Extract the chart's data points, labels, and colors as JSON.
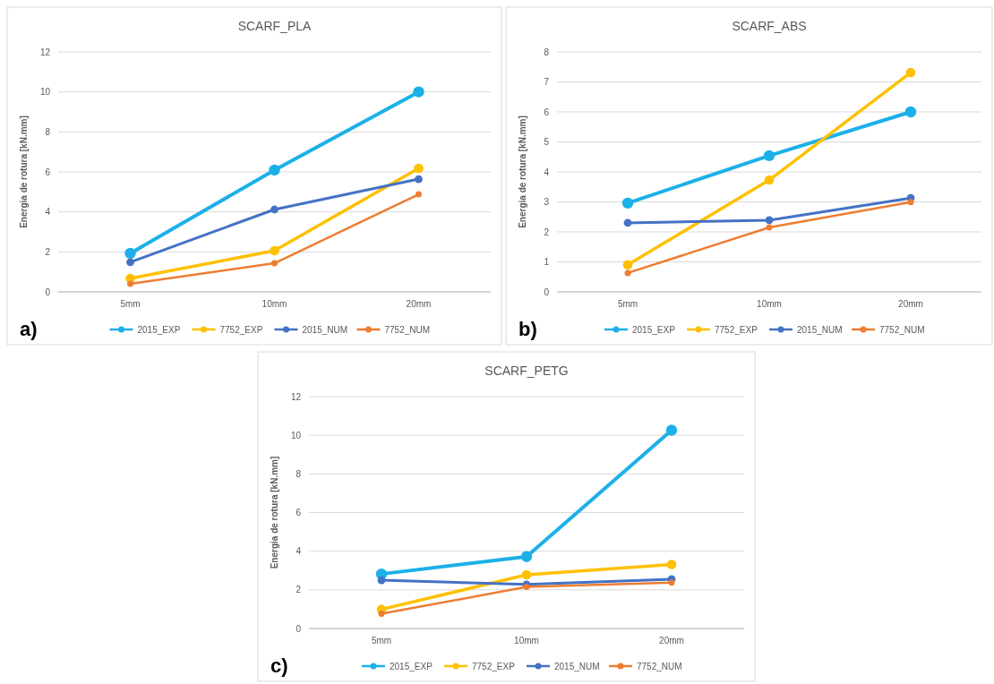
{
  "chart_data": [
    {
      "type": "line",
      "title": "SCARF_PLA",
      "ylabel": "Energia de rotura [kN.mm]",
      "categories": [
        "5mm",
        "10mm",
        "20mm"
      ],
      "ylim": [
        0,
        12
      ],
      "yticks": [
        0,
        2,
        4,
        6,
        8,
        10,
        12
      ],
      "grid": "y",
      "legend": "bottom",
      "marker": "circle",
      "annotations": [
        "a)"
      ],
      "series": [
        {
          "name": "2015_EXP",
          "color": "#1cb0e8",
          "values": [
            1.93,
            6.09,
            10.0
          ]
        },
        {
          "name": "7752_EXP",
          "color": "#ffc000",
          "values": [
            0.67,
            2.06,
            6.18
          ]
        },
        {
          "name": "2015_NUM",
          "color": "#4472c4",
          "values": [
            1.48,
            4.12,
            5.64
          ]
        },
        {
          "name": "7752_NUM",
          "color": "#ed7d31",
          "values": [
            0.4,
            1.43,
            4.88
          ]
        }
      ]
    },
    {
      "type": "line",
      "title": "SCARF_ABS",
      "ylabel": "Energia de rotura [kN.mm]",
      "categories": [
        "5mm",
        "10mm",
        "20mm"
      ],
      "ylim": [
        0,
        8
      ],
      "yticks": [
        0,
        1,
        2,
        3,
        4,
        5,
        6,
        7,
        8
      ],
      "grid": "y",
      "legend": "bottom",
      "marker": "circle",
      "annotations": [
        "b)"
      ],
      "series": [
        {
          "name": "2015_EXP",
          "color": "#1cb0e8",
          "values": [
            2.96,
            4.54,
            6.0
          ]
        },
        {
          "name": "7752_EXP",
          "color": "#ffc000",
          "values": [
            0.9,
            3.73,
            7.31
          ]
        },
        {
          "name": "2015_NUM",
          "color": "#4472c4",
          "values": [
            2.3,
            2.39,
            3.13
          ]
        },
        {
          "name": "7752_NUM",
          "color": "#ed7d31",
          "values": [
            0.63,
            2.15,
            2.99
          ]
        }
      ]
    },
    {
      "type": "line",
      "title": "SCARF_PETG",
      "ylabel": "Energia de rotura [kN.mm]",
      "categories": [
        "5mm",
        "10mm",
        "20mm"
      ],
      "ylim": [
        0,
        12
      ],
      "yticks": [
        0,
        2,
        4,
        6,
        8,
        10,
        12
      ],
      "grid": "y",
      "legend": "bottom",
      "marker": "circle",
      "annotations": [
        "c)"
      ],
      "series": [
        {
          "name": "2015_EXP",
          "color": "#1cb0e8",
          "values": [
            2.82,
            3.72,
            10.26
          ]
        },
        {
          "name": "7752_EXP",
          "color": "#ffc000",
          "values": [
            0.99,
            2.78,
            3.31
          ]
        },
        {
          "name": "2015_NUM",
          "color": "#4472c4",
          "values": [
            2.5,
            2.28,
            2.55
          ]
        },
        {
          "name": "7752_NUM",
          "color": "#ed7d31",
          "values": [
            0.76,
            2.15,
            2.37
          ]
        }
      ]
    }
  ]
}
